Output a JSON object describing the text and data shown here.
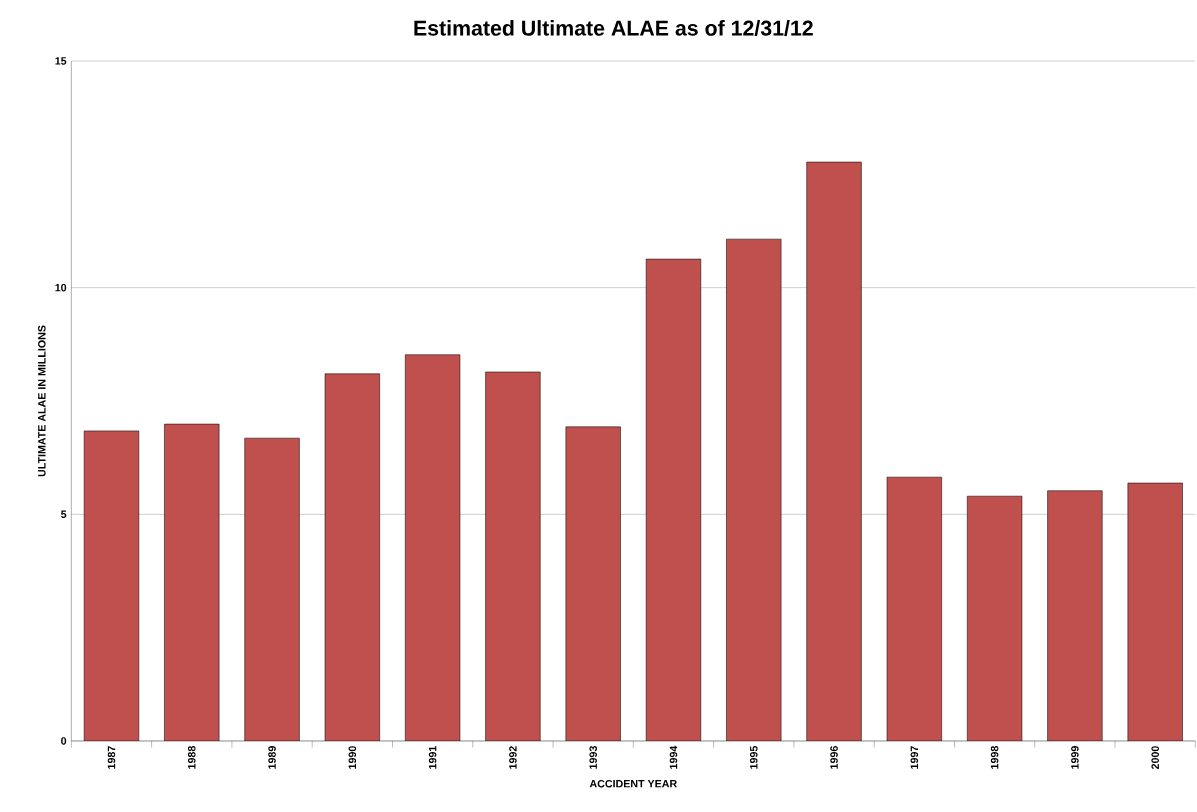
{
  "chart_data": {
    "type": "bar",
    "title": "Estimated Ultimate ALAE as of 12/31/12",
    "xlabel": "ACCIDENT YEAR",
    "ylabel": "ULTIMATE ALAE IN MILLIONS",
    "categories": [
      "1987",
      "1988",
      "1989",
      "1990",
      "1991",
      "1992",
      "1993",
      "1994",
      "1995",
      "1996",
      "1997",
      "1998",
      "1999",
      "2000"
    ],
    "values": [
      6.84,
      6.99,
      6.68,
      8.1,
      8.52,
      8.14,
      6.93,
      10.63,
      11.07,
      12.77,
      5.82,
      5.4,
      5.52,
      5.69
    ],
    "color": "#c0504d",
    "ylim": [
      0,
      15
    ],
    "yticks": [
      0,
      5,
      10,
      15
    ],
    "grid": "y"
  }
}
